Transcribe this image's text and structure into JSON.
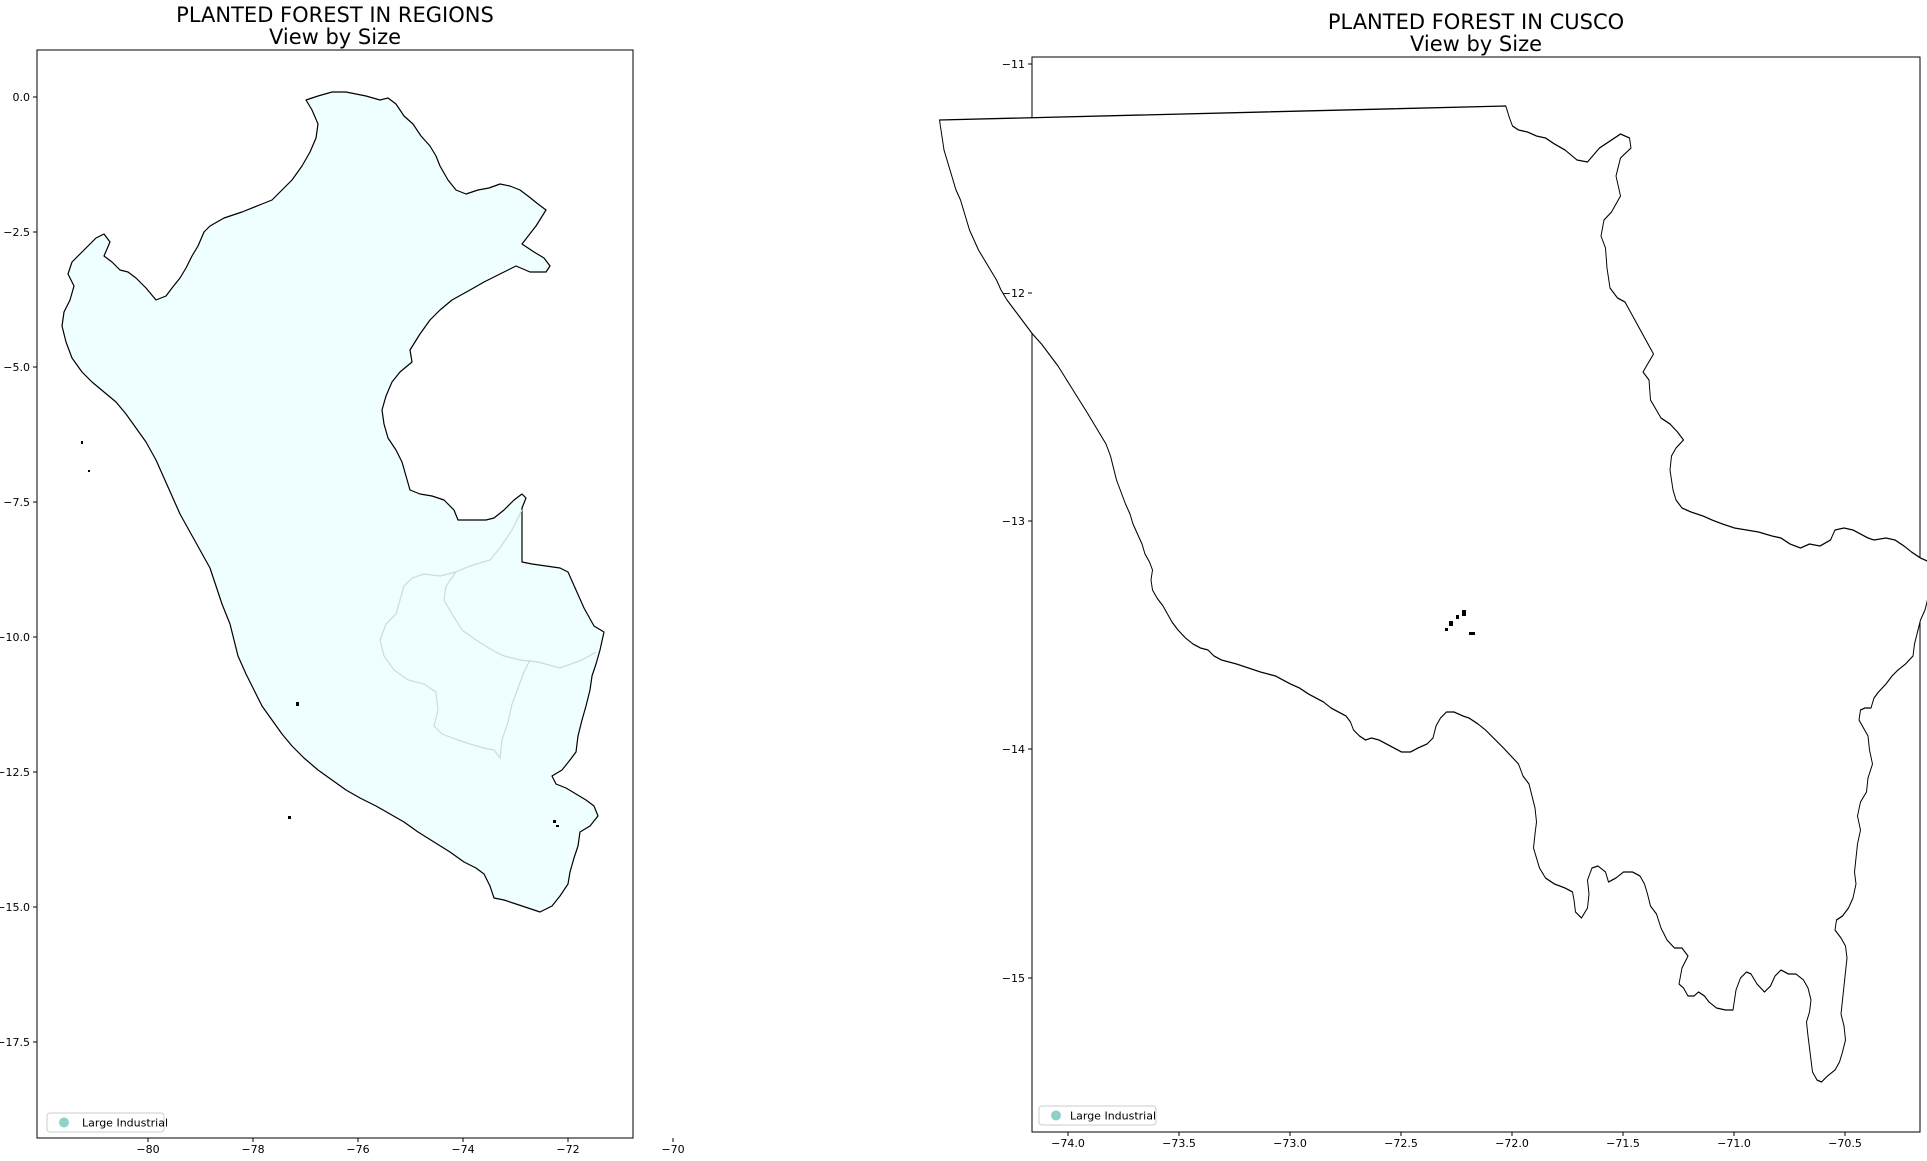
{
  "colors": {
    "region_fill": "#effefe",
    "region_interior_border": "#c9dcdc",
    "outline": "#000000",
    "marker": "#8fd1c6",
    "frame": "#000000",
    "legend_border": "#cccccc"
  },
  "maps": [
    {
      "title": "PLANTED FOREST IN REGIONS",
      "subtitle": "View by Size",
      "x_ticks": [
        "−80",
        "−78",
        "−76",
        "−74",
        "−72",
        "−70"
      ],
      "y_ticks": [
        "0.0",
        "−2.5",
        "−5.0",
        "−7.5",
        "−10.0",
        "−12.5",
        "−15.0",
        "−17.5"
      ],
      "xlim": [
        -81.95,
        -68.0
      ],
      "ylim": [
        -19.65,
        0.85
      ],
      "legend": {
        "label": "Large Industrial",
        "position": "lower-left"
      }
    },
    {
      "title": "PLANTED FOREST IN CUSCO",
      "subtitle": "View by Size",
      "x_ticks": [
        "−74.0",
        "−73.5",
        "−73.0",
        "−72.5",
        "−72.0",
        "−71.5",
        "−71.0",
        "−70.5"
      ],
      "y_ticks": [
        "−11",
        "−12",
        "−13",
        "−14",
        "−15"
      ],
      "xlim": [
        -74.17,
        -70.17
      ],
      "ylim": [
        -15.67,
        -10.96
      ],
      "legend": {
        "label": "Large Industrial",
        "position": "lower-left"
      }
    }
  ]
}
